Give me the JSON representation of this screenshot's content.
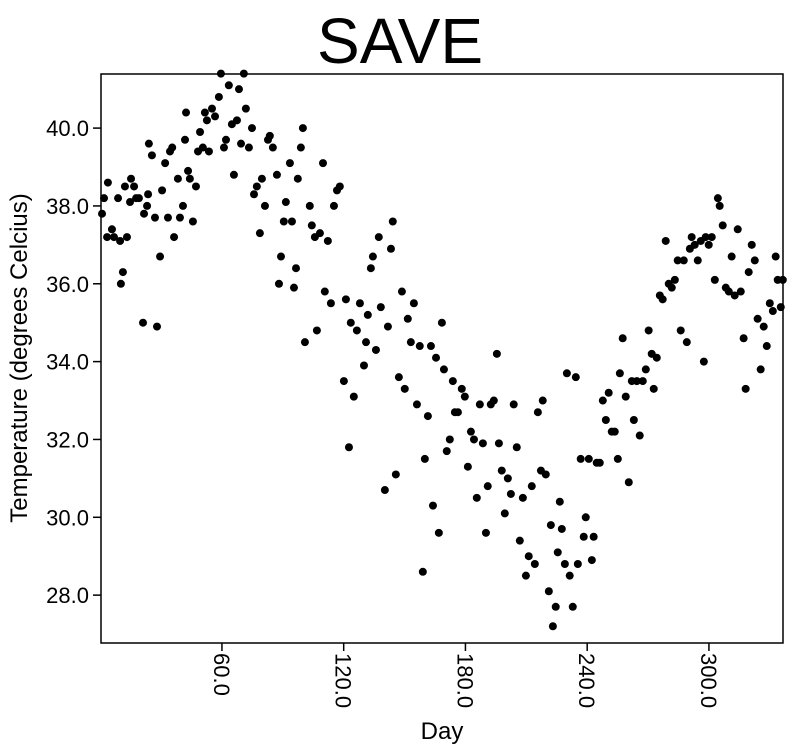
{
  "chart_data": {
    "type": "scatter",
    "title": "SAVE",
    "xlabel": "Day",
    "ylabel": "Temperature (degrees Celcius)",
    "color": "#000000",
    "xlim": [
      0.4,
      336.5
    ],
    "ylim": [
      26.77,
      41.39
    ],
    "xticks": [
      {
        "value": 60,
        "label": "60.0"
      },
      {
        "value": 120,
        "label": "120.0"
      },
      {
        "value": 180,
        "label": "180.0"
      },
      {
        "value": 240,
        "label": "240.0"
      },
      {
        "value": 300,
        "label": "300.0"
      }
    ],
    "yticks": [
      {
        "value": 28,
        "label": "28.0"
      },
      {
        "value": 30,
        "label": "30.0"
      },
      {
        "value": 32,
        "label": "32.0"
      },
      {
        "value": 34,
        "label": "34.0"
      },
      {
        "value": 36,
        "label": "36.0"
      },
      {
        "value": 38,
        "label": "38.0"
      },
      {
        "value": 40,
        "label": "40.0"
      }
    ],
    "x": [
      0.9,
      1.9,
      3.8,
      3.4,
      5.8,
      6.8,
      8.8,
      9.8,
      10.2,
      11.2,
      12.2,
      13.2,
      14.7,
      15.2,
      16.7,
      17.7,
      19.1,
      21.1,
      21.6,
      23.1,
      23.6,
      24.0,
      25.5,
      27.0,
      28.0,
      29.5,
      30.5,
      32.0,
      33.4,
      34.4,
      35.5,
      36.4,
      38.3,
      39.3,
      40.8,
      41.8,
      42.3,
      43.3,
      44.2,
      45.7,
      47.2,
      48.2,
      49.2,
      50.6,
      51.6,
      52.6,
      53.6,
      55.1,
      56.6,
      58.5,
      59.5,
      61.0,
      62.0,
      63.4,
      64.9,
      65.9,
      67.4,
      68.4,
      69.4,
      70.8,
      71.8,
      73.3,
      74.8,
      75.8,
      77.2,
      78.7,
      79.7,
      81.2,
      82.7,
      83.6,
      85.1,
      87.1,
      88.1,
      89.1,
      90.5,
      91.5,
      93.5,
      94.5,
      95.5,
      96.5,
      97.4,
      98.9,
      99.9,
      100.9,
      103.3,
      104.3,
      105.8,
      106.8,
      108.3,
      109.8,
      110.7,
      112.2,
      113.7,
      115.2,
      116.7,
      118.1,
      120.1,
      121.1,
      122.6,
      123.5,
      125.0,
      126.5,
      128.0,
      130.0,
      131.0,
      131.9,
      133.4,
      134.4,
      135.9,
      137.3,
      138.3,
      140.3,
      141.8,
      143.3,
      144.2,
      145.7,
      147.2,
      148.7,
      150.1,
      151.6,
      153.1,
      154.6,
      156.1,
      157.5,
      159.0,
      160.0,
      161.5,
      163.0,
      164.0,
      165.5,
      166.9,
      168.4,
      169.4,
      170.8,
      172.3,
      173.8,
      174.8,
      176.3,
      178.2,
      179.7,
      181.2,
      182.7,
      184.2,
      185.6,
      187.1,
      188.6,
      190.1,
      191.0,
      192.5,
      194.0,
      195.5,
      196.5,
      197.9,
      199.4,
      200.9,
      202.4,
      203.8,
      205.3,
      206.8,
      208.3,
      209.8,
      211.2,
      212.7,
      214.2,
      215.7,
      217.2,
      218.1,
      219.6,
      221.1,
      222.1,
      223.1,
      224.5,
      225.5,
      226.5,
      227.5,
      229.0,
      230.0,
      231.4,
      232.9,
      234.4,
      235.4,
      236.8,
      238.3,
      239.3,
      240.8,
      242.3,
      243.2,
      244.7,
      246.2,
      247.7,
      249.2,
      250.6,
      252.1,
      253.6,
      255.1,
      256.1,
      257.5,
      259.0,
      260.5,
      262.0,
      263.0,
      264.5,
      265.9,
      267.4,
      268.9,
      270.3,
      271.8,
      272.8,
      274.3,
      275.8,
      277.2,
      278.7,
      280.2,
      281.7,
      283.2,
      284.6,
      286.1,
      287.6,
      289.1,
      290.6,
      291.5,
      293.0,
      294.5,
      296.0,
      297.5,
      298.4,
      299.9,
      301.4,
      302.9,
      304.4,
      305.3,
      306.8,
      308.3,
      309.8,
      311.2,
      312.7,
      314.2,
      315.7,
      317.1,
      318.1,
      319.6,
      321.1,
      322.6,
      324.0,
      325.5,
      327.0,
      328.5,
      330.0,
      331.5,
      332.9,
      333.9,
      335.4,
      336.4
    ],
    "values": [
      37.8,
      38.2,
      38.6,
      37.2,
      37.4,
      37.2,
      38.2,
      37.1,
      36.0,
      36.3,
      38.5,
      37.2,
      38.1,
      38.7,
      38.5,
      38.2,
      38.2,
      35.0,
      37.8,
      38.0,
      38.3,
      39.6,
      39.3,
      37.7,
      34.9,
      36.7,
      38.4,
      39.1,
      37.7,
      39.4,
      39.5,
      37.2,
      38.7,
      37.7,
      38.0,
      39.7,
      40.4,
      38.9,
      38.7,
      37.6,
      38.5,
      39.4,
      39.9,
      39.5,
      40.4,
      40.2,
      39.4,
      40.5,
      40.3,
      40.8,
      41.4,
      39.5,
      39.7,
      41.1,
      40.1,
      38.8,
      40.2,
      41.0,
      39.6,
      41.4,
      40.5,
      39.5,
      40.0,
      38.3,
      38.5,
      37.3,
      38.7,
      38.0,
      39.7,
      39.8,
      39.5,
      38.8,
      36.0,
      36.7,
      37.6,
      38.1,
      39.1,
      37.6,
      35.9,
      36.4,
      38.7,
      39.5,
      40.0,
      34.5,
      38.0,
      37.5,
      37.2,
      34.8,
      37.3,
      39.1,
      35.8,
      37.1,
      35.5,
      38.0,
      38.4,
      38.5,
      33.5,
      35.6,
      31.8,
      35.0,
      33.1,
      34.8,
      35.5,
      33.9,
      34.5,
      35.2,
      36.4,
      36.7,
      34.3,
      37.2,
      35.4,
      30.7,
      34.9,
      36.9,
      37.6,
      31.1,
      33.6,
      35.8,
      33.3,
      35.1,
      34.5,
      35.5,
      32.9,
      34.4,
      28.6,
      31.5,
      32.6,
      34.4,
      30.3,
      34.1,
      29.6,
      35.0,
      33.8,
      31.7,
      32.0,
      33.5,
      32.7,
      32.7,
      33.3,
      33.1,
      31.3,
      32.2,
      32.0,
      30.5,
      32.9,
      31.9,
      29.6,
      30.8,
      32.9,
      33.0,
      34.2,
      31.9,
      31.2,
      30.1,
      31.0,
      30.6,
      32.9,
      31.8,
      29.4,
      30.5,
      28.5,
      29.0,
      30.8,
      28.8,
      32.7,
      31.2,
      33.0,
      31.1,
      28.1,
      29.8,
      27.2,
      27.7,
      29.1,
      30.4,
      29.7,
      28.8,
      33.7,
      28.5,
      27.7,
      33.6,
      28.8,
      31.5,
      29.5,
      30.0,
      31.5,
      28.9,
      29.5,
      31.4,
      31.4,
      33.0,
      32.5,
      33.2,
      32.2,
      32.2,
      31.5,
      33.7,
      34.6,
      33.1,
      30.9,
      33.5,
      32.5,
      33.5,
      32.1,
      33.5,
      33.8,
      34.8,
      34.2,
      33.3,
      34.1,
      35.7,
      35.6,
      37.1,
      36.0,
      35.9,
      36.1,
      36.6,
      34.8,
      36.6,
      34.5,
      36.9,
      37.2,
      37.0,
      36.6,
      37.1,
      34.0,
      37.2,
      37.0,
      37.2,
      36.1,
      38.2,
      38.0,
      37.5,
      35.9,
      35.8,
      36.7,
      35.7,
      37.4,
      35.8,
      34.6,
      33.3,
      36.3,
      37.0,
      36.6,
      35.1,
      33.8,
      34.9,
      34.4,
      35.5,
      35.3,
      36.7,
      36.1,
      35.4,
      36.1
    ]
  }
}
